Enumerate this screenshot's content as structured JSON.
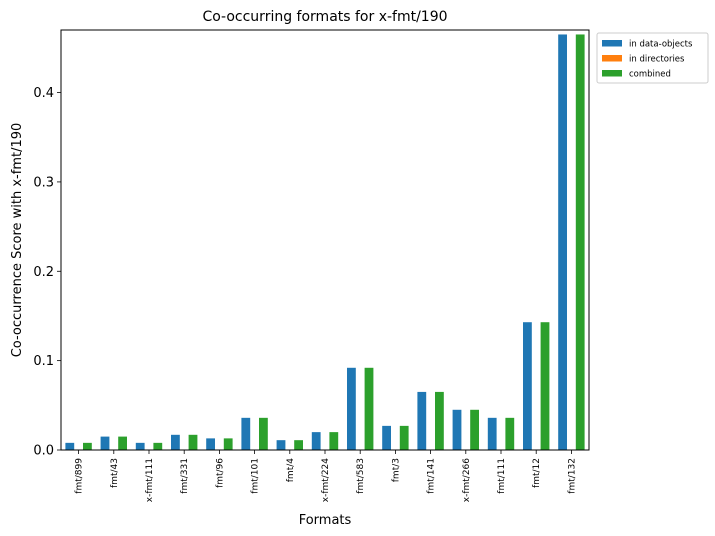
{
  "chart_data": {
    "type": "bar",
    "title": "Co-occurring formats for x-fmt/190",
    "xlabel": "Formats",
    "ylabel": "Co-occurrence Score with x-fmt/190",
    "ylim": [
      0,
      0.47
    ],
    "yticks": [
      "0.0",
      "0.1",
      "0.2",
      "0.3",
      "0.4"
    ],
    "ytick_values": [
      0,
      0.1,
      0.2,
      0.3,
      0.4
    ],
    "grid": false,
    "legend_position": "outside-top-right",
    "categories": [
      "fmt/899",
      "fmt/43",
      "x-fmt/111",
      "fmt/331",
      "fmt/96",
      "fmt/101",
      "fmt/4",
      "x-fmt/224",
      "fmt/583",
      "fmt/3",
      "fmt/141",
      "x-fmt/266",
      "fmt/111",
      "fmt/12",
      "fmt/132"
    ],
    "series": [
      {
        "name": "in data-objects",
        "color": "#1f77b4",
        "values": [
          0.008,
          0.015,
          0.008,
          0.017,
          0.013,
          0.036,
          0.011,
          0.02,
          0.092,
          0.027,
          0.065,
          0.045,
          0.036,
          0.143,
          0.465
        ]
      },
      {
        "name": "in directories",
        "color": "#ff7f0e",
        "values": [
          0,
          0,
          0,
          0,
          0,
          0,
          0,
          0,
          0,
          0,
          0,
          0,
          0,
          0,
          0
        ]
      },
      {
        "name": "combined",
        "color": "#2ca02c",
        "values": [
          0.008,
          0.015,
          0.008,
          0.017,
          0.013,
          0.036,
          0.011,
          0.02,
          0.092,
          0.027,
          0.065,
          0.045,
          0.036,
          0.143,
          0.465
        ]
      }
    ]
  }
}
